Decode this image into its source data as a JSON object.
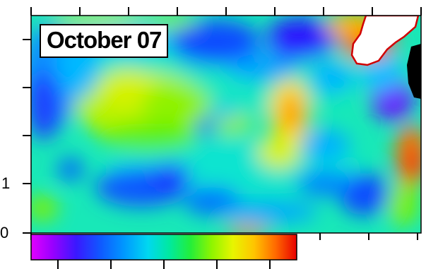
{
  "map": {
    "title": "October 07",
    "y_tick_labels": [
      {
        "text": "1",
        "value": 1
      },
      {
        "text": "0",
        "value": 0
      }
    ],
    "colorbar": {
      "colors": [
        "#e200ff",
        "#5b00ff",
        "#1e2cff",
        "#0070ff",
        "#00b5ff",
        "#00e7e3",
        "#00e98a",
        "#2ef226",
        "#b2f500",
        "#fff200",
        "#ffae00",
        "#ff5a00",
        "#e80000"
      ]
    },
    "colors": {
      "frame": "#000000",
      "land": "#ffffff",
      "no_data": "#000000",
      "background": "#ffffff"
    }
  }
}
